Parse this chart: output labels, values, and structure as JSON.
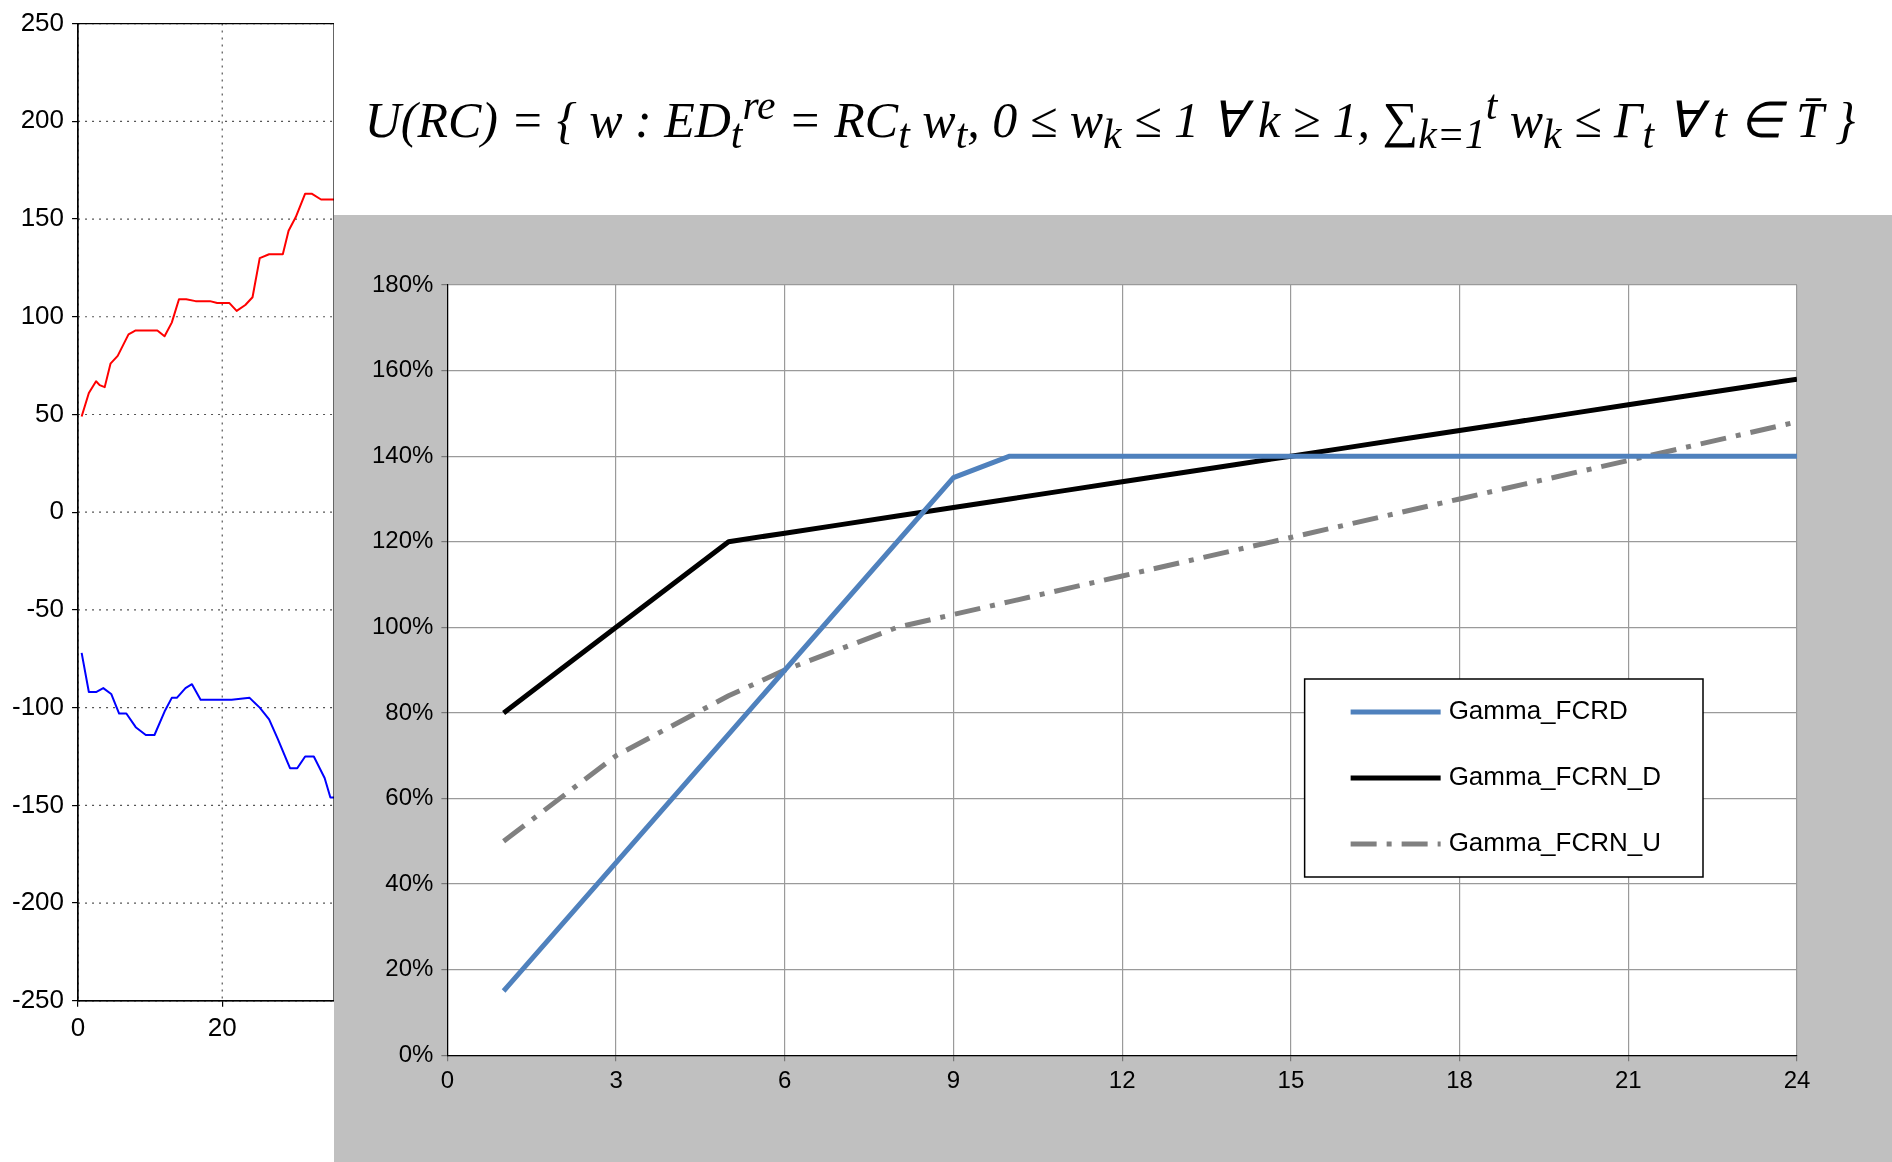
{
  "chart_data": [
    {
      "type": "line",
      "xlim": [
        0,
        35.5
      ],
      "xticks": [
        0,
        20
      ],
      "ylim": [
        -250,
        250
      ],
      "yticks": [
        -250,
        -200,
        -150,
        -100,
        -50,
        0,
        50,
        100,
        150,
        200,
        250
      ],
      "grid": true,
      "marker": "none",
      "series": [
        {
          "color": "#ff0000",
          "x": [
            0.5,
            1.5,
            2.5,
            3,
            3.7,
            4.5,
            5.5,
            7,
            8,
            11,
            12,
            13,
            14,
            15,
            16.3,
            18.3,
            19.3,
            21,
            22,
            23.2,
            24.2,
            25.2,
            26.5,
            28.4,
            29.2,
            30.2,
            31.5,
            32.4,
            33.7,
            35.5
          ],
          "values": [
            49,
            61,
            67,
            65,
            64,
            76,
            80,
            91,
            93,
            93,
            90,
            97,
            109,
            109,
            108,
            108,
            107,
            107,
            103,
            106,
            110,
            130,
            132,
            132,
            144,
            151,
            163,
            163,
            160,
            160
          ]
        },
        {
          "color": "#0000ff",
          "x": [
            0.5,
            1.5,
            2.5,
            3.5,
            4.6,
            5.7,
            6.7,
            8,
            9.4,
            10.6,
            12,
            13,
            13.7,
            14.9,
            15.8,
            17,
            21.3,
            23.8,
            25.2,
            26.5,
            27.7,
            29.4,
            30.4,
            31.5,
            32.7,
            34.2,
            35,
            35.5
          ],
          "values": [
            -72,
            -92,
            -92,
            -90,
            -93,
            -103,
            -103,
            -110,
            -114,
            -114,
            -102,
            -95,
            -95,
            -90,
            -88,
            -96,
            -96,
            -95,
            -100,
            -106,
            -116,
            -131,
            -131,
            -125,
            -125,
            -136,
            -146,
            -146
          ]
        }
      ]
    },
    {
      "type": "other",
      "title": "U(RC) = { w : ED$_{t}$$^{re}$ = RC$_{t}$ w$_{t}$,  0 ≤ w$_{k}$ ≤ 1 ∀ k ≥ 1,  ∑$_{k=1}$$^{t}$ w$_{k}$ ≤ Γ$_{t}$ ∀ t ∈ T̄ }"
    },
    {
      "type": "line",
      "xlim": [
        0,
        24
      ],
      "xticks": [
        0,
        3,
        6,
        9,
        12,
        15,
        18,
        21,
        24
      ],
      "ylim": [
        0,
        180
      ],
      "yticks": [
        {
          "value": 0,
          "label": "0%"
        },
        {
          "value": 20,
          "label": "20%"
        },
        {
          "value": 40,
          "label": "40%"
        },
        {
          "value": 60,
          "label": "60%"
        },
        {
          "value": 80,
          "label": "80%"
        },
        {
          "value": 100,
          "label": "100%"
        },
        {
          "value": 120,
          "label": "120%"
        },
        {
          "value": 140,
          "label": "140%"
        },
        {
          "value": 160,
          "label": "160%"
        },
        {
          "value": 180,
          "label": "180%"
        }
      ],
      "grid": true,
      "legend": "right",
      "marker": "none",
      "series": [
        {
          "name": "Gamma_FCRD",
          "color": "#4f81bd",
          "line_style": "solid",
          "x": [
            1,
            5,
            9,
            10,
            24
          ],
          "values": [
            15,
            75,
            135,
            140,
            140
          ]
        },
        {
          "name": "Gamma_FCRN_D",
          "color": "#000000",
          "line_style": "solid",
          "x": [
            1,
            2,
            5,
            6,
            7,
            8,
            9,
            10,
            11,
            12,
            13,
            14,
            15,
            16,
            17,
            18,
            19,
            20,
            21,
            22,
            23,
            24
          ],
          "values": [
            80,
            90,
            120,
            122,
            124,
            126,
            128,
            130,
            132,
            134,
            136,
            138,
            140,
            142,
            144,
            146,
            148,
            150,
            152,
            154,
            156,
            158
          ]
        },
        {
          "name": "Gamma_FCRN_U",
          "color": "#808080",
          "line_style": "dashed",
          "x": [
            1,
            3,
            5,
            6,
            7,
            8,
            9,
            10,
            12,
            15,
            18,
            21,
            24
          ],
          "values": [
            50,
            70,
            84,
            90,
            95,
            100,
            103,
            106,
            112,
            121,
            130,
            139,
            148
          ]
        }
      ]
    }
  ]
}
